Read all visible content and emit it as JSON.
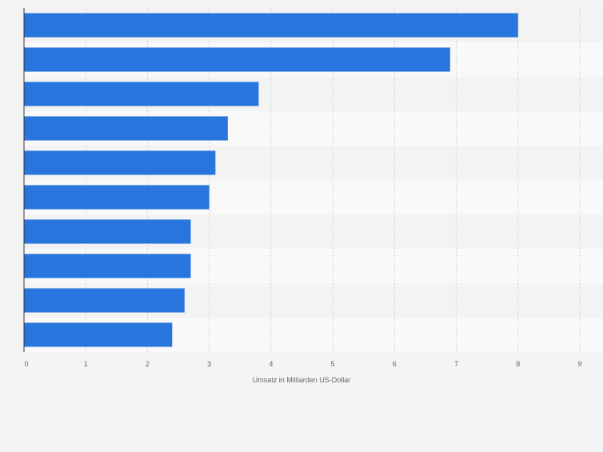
{
  "chart_data": {
    "type": "bar",
    "orientation": "horizontal",
    "categories": [
      "",
      "",
      "",
      "",
      "",
      "",
      "",
      "",
      "",
      ""
    ],
    "values": [
      8.0,
      6.9,
      3.8,
      3.3,
      3.1,
      3.0,
      2.7,
      2.7,
      2.6,
      2.4
    ],
    "x_ticks": [
      "0",
      "1",
      "2",
      "3",
      "4",
      "5",
      "6",
      "7",
      "8",
      "9"
    ],
    "xlim": [
      0,
      9
    ],
    "xlabel": "Umsatz in Milliarden US-Dollar",
    "ylabel": "",
    "title": "",
    "grid": true,
    "colors": {
      "bar": "#2876dd",
      "band_light": "#f9f9f9",
      "band_dark": "#f3f3f3",
      "grid": "#d6d6d6",
      "axis": "#333333",
      "tick_text": "#666666",
      "background": "#f4f4f4"
    }
  }
}
